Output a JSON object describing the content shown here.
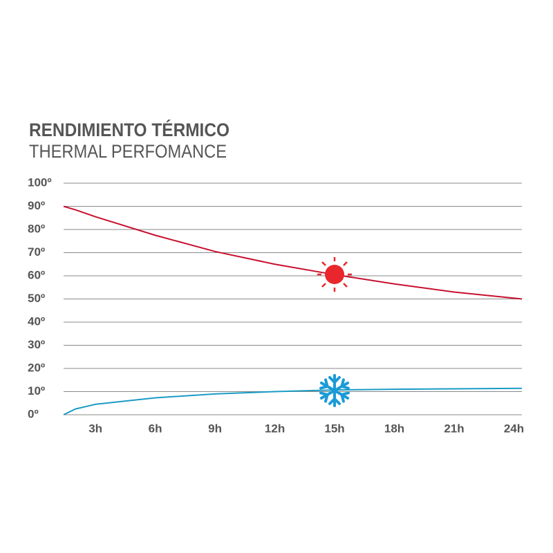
{
  "chart_data": {
    "type": "line",
    "title": "RENDIMIENTO TÉRMICO",
    "subtitle": "THERMAL PERFOMANCE",
    "x": [
      1.4,
      2,
      3,
      6,
      9,
      12,
      15,
      18,
      21,
      24.4
    ],
    "series": [
      {
        "color": "#c8102e",
        "values": [
          90,
          88.5,
          85.5,
          77.5,
          70.5,
          65,
          60.5,
          56.5,
          53,
          50
        ]
      },
      {
        "color": "#1a9bc4",
        "values": [
          0,
          2.5,
          4.5,
          7.3,
          9,
          10,
          10.7,
          11,
          11.2,
          11.4
        ]
      }
    ],
    "xlim": [
      1.4,
      24.4
    ],
    "ylim": [
      0,
      100
    ],
    "xticks": [
      {
        "value": 3,
        "label": "3h"
      },
      {
        "value": 6,
        "label": "6h"
      },
      {
        "value": 9,
        "label": "9h"
      },
      {
        "value": 12,
        "label": "12h"
      },
      {
        "value": 15,
        "label": "15h"
      },
      {
        "value": 18,
        "label": "18h"
      },
      {
        "value": 21,
        "label": "21h"
      },
      {
        "value": 24,
        "label": "24h"
      }
    ],
    "yticks": [
      {
        "value": 0,
        "label": "0º"
      },
      {
        "value": 10,
        "label": "10º"
      },
      {
        "value": 20,
        "label": "20º"
      },
      {
        "value": 30,
        "label": "30º"
      },
      {
        "value": 40,
        "label": "40º"
      },
      {
        "value": 50,
        "label": "50º"
      },
      {
        "value": 60,
        "label": "60º"
      },
      {
        "value": 70,
        "label": "70º"
      },
      {
        "value": 80,
        "label": "80º"
      },
      {
        "value": 90,
        "label": "90º"
      },
      {
        "value": 100,
        "label": "100º"
      }
    ],
    "grid": true
  }
}
